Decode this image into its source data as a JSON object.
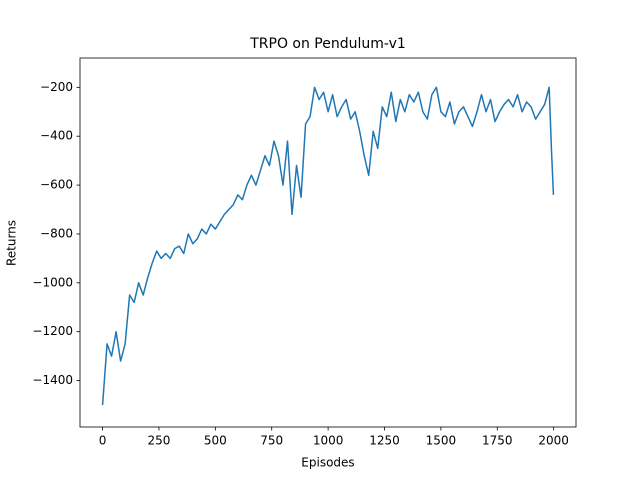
{
  "chart_data": {
    "type": "line",
    "title": "TRPO on Pendulum-v1",
    "xlabel": "Episodes",
    "ylabel": "Returns",
    "x": [
      0,
      20,
      40,
      60,
      80,
      100,
      120,
      140,
      160,
      180,
      200,
      220,
      240,
      260,
      280,
      300,
      320,
      340,
      360,
      380,
      400,
      420,
      440,
      460,
      480,
      500,
      520,
      540,
      560,
      580,
      600,
      620,
      640,
      660,
      680,
      700,
      720,
      740,
      760,
      780,
      800,
      820,
      840,
      860,
      880,
      900,
      920,
      940,
      960,
      980,
      1000,
      1020,
      1040,
      1060,
      1080,
      1100,
      1120,
      1140,
      1160,
      1180,
      1200,
      1220,
      1240,
      1260,
      1280,
      1300,
      1320,
      1340,
      1360,
      1380,
      1400,
      1420,
      1440,
      1460,
      1480,
      1500,
      1520,
      1540,
      1560,
      1580,
      1600,
      1620,
      1640,
      1660,
      1680,
      1700,
      1720,
      1740,
      1760,
      1780,
      1800,
      1820,
      1840,
      1860,
      1880,
      1900,
      1920,
      1940,
      1960,
      1980,
      1990,
      1999
    ],
    "series": [
      {
        "name": "Returns",
        "color": "#1f77b4",
        "values": [
          -1500,
          -1250,
          -1300,
          -1200,
          -1320,
          -1250,
          -1050,
          -1080,
          -1000,
          -1050,
          -980,
          -920,
          -870,
          -900,
          -880,
          -900,
          -860,
          -850,
          -880,
          -800,
          -840,
          -820,
          -780,
          -800,
          -760,
          -780,
          -750,
          -720,
          -700,
          -680,
          -640,
          -660,
          -600,
          -560,
          -600,
          -540,
          -480,
          -520,
          -420,
          -480,
          -600,
          -420,
          -720,
          -520,
          -650,
          -350,
          -320,
          -200,
          -250,
          -220,
          -300,
          -230,
          -320,
          -280,
          -250,
          -330,
          -300,
          -380,
          -480,
          -560,
          -380,
          -450,
          -280,
          -320,
          -220,
          -340,
          -250,
          -300,
          -230,
          -260,
          -220,
          -300,
          -330,
          -230,
          -200,
          -300,
          -320,
          -260,
          -350,
          -300,
          -280,
          -320,
          -360,
          -300,
          -230,
          -300,
          -250,
          -340,
          -300,
          -270,
          -250,
          -280,
          -230,
          -300,
          -260,
          -280,
          -330,
          -300,
          -270,
          -200,
          -450,
          -640
        ]
      }
    ],
    "xlim": [
      -100,
      2099
    ],
    "ylim": [
      -1590,
      -80
    ],
    "xticks": [
      0,
      250,
      500,
      750,
      1000,
      1250,
      1500,
      1750,
      2000
    ],
    "yticks": [
      {
        "value": -1400,
        "label": "−1400"
      },
      {
        "value": -1200,
        "label": "−1200"
      },
      {
        "value": -1000,
        "label": "−1000"
      },
      {
        "value": -800,
        "label": "−800"
      },
      {
        "value": -600,
        "label": "−600"
      },
      {
        "value": -400,
        "label": "−400"
      },
      {
        "value": -200,
        "label": "−200"
      }
    ]
  }
}
